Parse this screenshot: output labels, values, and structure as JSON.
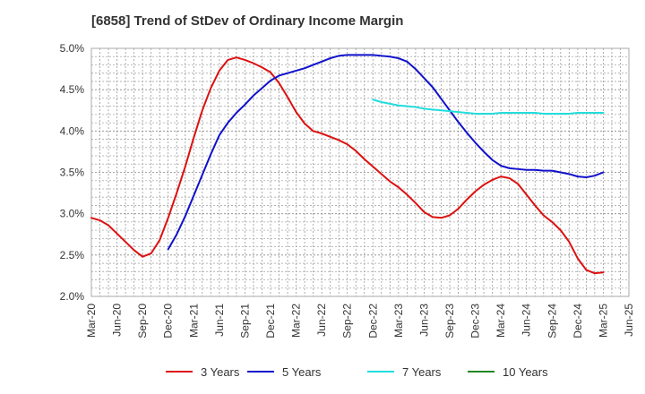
{
  "chart_data": {
    "type": "line",
    "title": "[6858]  Trend of StDev of Ordinary Income Margin",
    "xlabel": "",
    "ylabel": "",
    "x_ticks": [
      "Mar-20",
      "Jun-20",
      "Sep-20",
      "Dec-20",
      "Mar-21",
      "Jun-21",
      "Sep-21",
      "Dec-21",
      "Mar-22",
      "Jun-22",
      "Sep-22",
      "Dec-22",
      "Mar-23",
      "Jun-23",
      "Sep-23",
      "Dec-23",
      "Mar-24",
      "Jun-24",
      "Sep-24",
      "Dec-24",
      "Mar-25",
      "Jun-25"
    ],
    "y_ticks": [
      "2.0%",
      "2.5%",
      "3.0%",
      "3.5%",
      "4.0%",
      "4.5%",
      "5.0%"
    ],
    "ylim": [
      2.0,
      5.0
    ],
    "y_unit": "%",
    "grid": true,
    "legend_position": "bottom",
    "series": [
      {
        "name": "3 Years",
        "color": "#dd1111",
        "x": [
          "Mar-20",
          "Apr-20",
          "May-20",
          "Jun-20",
          "Jul-20",
          "Aug-20",
          "Sep-20",
          "Oct-20",
          "Nov-20",
          "Dec-20",
          "Jan-21",
          "Feb-21",
          "Mar-21",
          "Apr-21",
          "May-21",
          "Jun-21",
          "Jul-21",
          "Aug-21",
          "Sep-21",
          "Oct-21",
          "Nov-21",
          "Dec-21",
          "Jan-22",
          "Feb-22",
          "Mar-22",
          "Apr-22",
          "May-22",
          "Jun-22",
          "Jul-22",
          "Aug-22",
          "Sep-22",
          "Oct-22",
          "Nov-22",
          "Dec-22",
          "Jan-23",
          "Feb-23",
          "Mar-23",
          "Apr-23",
          "May-23",
          "Jun-23",
          "Jul-23",
          "Aug-23",
          "Sep-23",
          "Oct-23",
          "Nov-23",
          "Dec-23",
          "Jan-24",
          "Feb-24",
          "Mar-24",
          "Apr-24",
          "May-24",
          "Jun-24",
          "Jul-24",
          "Aug-24",
          "Sep-24",
          "Oct-24",
          "Nov-24",
          "Dec-24",
          "Jan-25",
          "Feb-25",
          "Mar-25"
        ],
        "values": [
          2.95,
          2.92,
          2.86,
          2.76,
          2.66,
          2.56,
          2.48,
          2.52,
          2.68,
          2.95,
          3.25,
          3.57,
          3.92,
          4.25,
          4.52,
          4.73,
          4.86,
          4.89,
          4.86,
          4.82,
          4.77,
          4.71,
          4.58,
          4.41,
          4.23,
          4.09,
          4.0,
          3.97,
          3.93,
          3.89,
          3.84,
          3.76,
          3.66,
          3.57,
          3.48,
          3.39,
          3.32,
          3.23,
          3.13,
          3.02,
          2.96,
          2.95,
          2.98,
          3.06,
          3.17,
          3.27,
          3.35,
          3.41,
          3.45,
          3.43,
          3.36,
          3.23,
          3.1,
          2.98,
          2.9,
          2.8,
          2.66,
          2.46,
          2.32,
          2.28,
          2.29
        ]
      },
      {
        "name": "5 Years",
        "color": "#1111cc",
        "x": [
          "Dec-20",
          "Jan-21",
          "Feb-21",
          "Mar-21",
          "Apr-21",
          "May-21",
          "Jun-21",
          "Jul-21",
          "Aug-21",
          "Sep-21",
          "Oct-21",
          "Nov-21",
          "Dec-21",
          "Jan-22",
          "Feb-22",
          "Mar-22",
          "Apr-22",
          "May-22",
          "Jun-22",
          "Jul-22",
          "Aug-22",
          "Sep-22",
          "Oct-22",
          "Nov-22",
          "Dec-22",
          "Jan-23",
          "Feb-23",
          "Mar-23",
          "Apr-23",
          "May-23",
          "Jun-23",
          "Jul-23",
          "Aug-23",
          "Sep-23",
          "Oct-23",
          "Nov-23",
          "Dec-23",
          "Jan-24",
          "Feb-24",
          "Mar-24",
          "Apr-24",
          "May-24",
          "Jun-24",
          "Jul-24",
          "Aug-24",
          "Sep-24",
          "Oct-24",
          "Nov-24",
          "Dec-24",
          "Jan-25",
          "Feb-25",
          "Mar-25"
        ],
        "values": [
          2.57,
          2.75,
          2.97,
          3.22,
          3.47,
          3.72,
          3.95,
          4.1,
          4.22,
          4.32,
          4.43,
          4.52,
          4.61,
          4.67,
          4.7,
          4.73,
          4.76,
          4.8,
          4.84,
          4.88,
          4.91,
          4.92,
          4.92,
          4.92,
          4.92,
          4.91,
          4.9,
          4.88,
          4.84,
          4.75,
          4.64,
          4.53,
          4.39,
          4.25,
          4.11,
          3.98,
          3.86,
          3.75,
          3.65,
          3.58,
          3.55,
          3.54,
          3.53,
          3.53,
          3.52,
          3.52,
          3.5,
          3.48,
          3.45,
          3.44,
          3.46,
          3.5
        ]
      },
      {
        "name": "7 Years",
        "color": "#22dddd",
        "x": [
          "Dec-22",
          "Jan-23",
          "Feb-23",
          "Mar-23",
          "Apr-23",
          "May-23",
          "Jun-23",
          "Jul-23",
          "Aug-23",
          "Sep-23",
          "Oct-23",
          "Nov-23",
          "Dec-23",
          "Jan-24",
          "Feb-24",
          "Mar-24",
          "Apr-24",
          "May-24",
          "Jun-24",
          "Jul-24",
          "Aug-24",
          "Sep-24",
          "Oct-24",
          "Nov-24",
          "Dec-24",
          "Jan-25",
          "Feb-25",
          "Mar-25"
        ],
        "values": [
          4.38,
          4.35,
          4.33,
          4.31,
          4.3,
          4.29,
          4.27,
          4.26,
          4.25,
          4.24,
          4.23,
          4.22,
          4.21,
          4.21,
          4.21,
          4.22,
          4.22,
          4.22,
          4.22,
          4.22,
          4.21,
          4.21,
          4.21,
          4.21,
          4.22,
          4.22,
          4.22,
          4.22
        ]
      },
      {
        "name": "10 Years",
        "color": "#228822",
        "x": [],
        "values": []
      }
    ]
  }
}
